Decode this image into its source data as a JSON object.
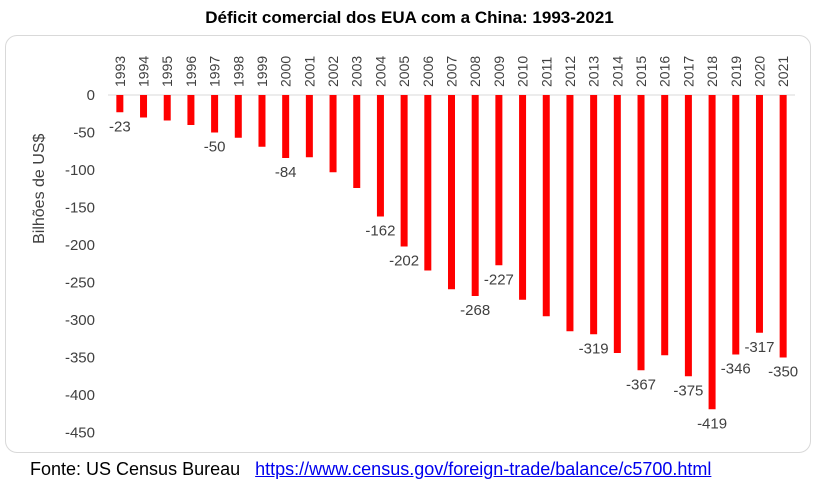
{
  "footer": {
    "source_label": "Fonte: US Census Bureau",
    "link_text": "https://www.census.gov/foreign-trade/balance/c5700.html"
  },
  "chart_data": {
    "type": "bar",
    "title": "Déficit comercial dos EUA com a China: 1993-2021",
    "xlabel": "",
    "ylabel": "Bilhões de US$",
    "ylim": [
      -450,
      0
    ],
    "yticks": [
      0,
      -50,
      -100,
      -150,
      -200,
      -250,
      -300,
      -350,
      -400,
      -450
    ],
    "x_axis_position": "top",
    "grid": false,
    "legend": "none",
    "bar_color": "#ff0000",
    "categories": [
      "1993",
      "1994",
      "1995",
      "1996",
      "1997",
      "1998",
      "1999",
      "2000",
      "2001",
      "2002",
      "2003",
      "2004",
      "2005",
      "2006",
      "2007",
      "2008",
      "2009",
      "2010",
      "2011",
      "2012",
      "2013",
      "2014",
      "2015",
      "2016",
      "2017",
      "2018",
      "2019",
      "2020",
      "2021"
    ],
    "values": [
      -23,
      -30,
      -34,
      -40,
      -50,
      -57,
      -69,
      -84,
      -83,
      -103,
      -124,
      -162,
      -202,
      -234,
      -259,
      -268,
      -227,
      -273,
      -295,
      -315,
      -319,
      -344,
      -367,
      -347,
      -375,
      -419,
      -346,
      -317,
      -350
    ],
    "data_labels": [
      {
        "category": "1993",
        "text": "-23"
      },
      {
        "category": "1997",
        "text": "-50"
      },
      {
        "category": "2000",
        "text": "-84"
      },
      {
        "category": "2004",
        "text": "-162"
      },
      {
        "category": "2005",
        "text": "-202"
      },
      {
        "category": "2008",
        "text": "-268"
      },
      {
        "category": "2009",
        "text": "-227"
      },
      {
        "category": "2013",
        "text": "-319"
      },
      {
        "category": "2015",
        "text": "-367"
      },
      {
        "category": "2017",
        "text": "-375"
      },
      {
        "category": "2018",
        "text": "-419"
      },
      {
        "category": "2019",
        "text": "-346"
      },
      {
        "category": "2020",
        "text": "-317"
      },
      {
        "category": "2021",
        "text": "-350"
      }
    ]
  }
}
